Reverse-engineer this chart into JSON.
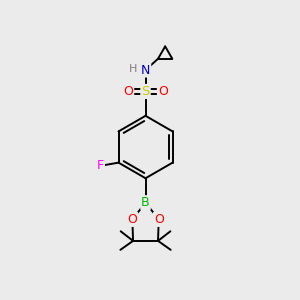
{
  "background_color": "#ebebeb",
  "fig_size": [
    3.0,
    3.0
  ],
  "dpi": 100,
  "atom_colors": {
    "C": "#000000",
    "H": "#808080",
    "N": "#0000cc",
    "O": "#ff0000",
    "S": "#cccc00",
    "F": "#ff00ff",
    "B": "#00bb00"
  },
  "bond_color": "#000000",
  "bond_width": 1.4
}
